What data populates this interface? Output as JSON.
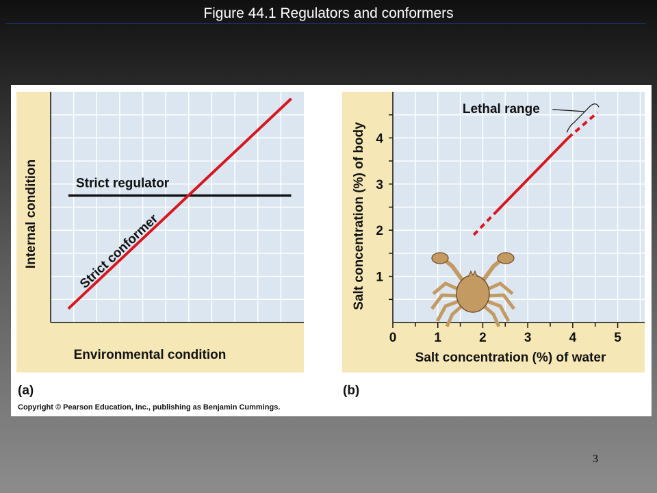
{
  "slide": {
    "title": "Figure 44.1  Regulators and conformers",
    "page_number": "3",
    "copyright": "Copyright © Pearson Education, Inc., publishing as Benjamin Cummings."
  },
  "colors": {
    "panel_bg": "#f6e8b6",
    "plot_bg": "#dbe6f1",
    "grid": "#ffffff",
    "conformer": "#d7161f",
    "regulator": "#111111",
    "crab": "#c49a63"
  },
  "chart_data": [
    {
      "type": "line",
      "panel_label": "(a)",
      "xlabel": "Environmental condition",
      "ylabel": "Internal condition",
      "ticks_shown": false,
      "grid": true,
      "series": [
        {
          "name": "Strict conformer",
          "color": "#d7161f",
          "style": "solid",
          "x": [
            0.07,
            0.95
          ],
          "y": [
            0.06,
            0.97
          ]
        },
        {
          "name": "Strict regulator",
          "color": "#111111",
          "style": "solid",
          "x": [
            0.07,
            0.95
          ],
          "y": [
            0.55,
            0.55
          ]
        }
      ],
      "xlim": [
        0,
        1
      ],
      "ylim": [
        0,
        1
      ]
    },
    {
      "type": "line",
      "panel_label": "(b)",
      "xlabel": "Salt concentration (%) of water",
      "ylabel": "Salt concentration (%) of body",
      "x_ticks": [
        "0",
        "1",
        "2",
        "3",
        "4",
        "5"
      ],
      "y_ticks": [
        "1",
        "2",
        "3",
        "4"
      ],
      "xlim": [
        0,
        5.6
      ],
      "ylim": [
        0,
        5
      ],
      "grid": true,
      "annotation": "Lethal range",
      "series": [
        {
          "style": "dashed",
          "color": "#d7161f",
          "x": [
            1.8,
            2.3
          ],
          "y": [
            1.9,
            2.4
          ]
        },
        {
          "style": "solid",
          "color": "#d7161f",
          "x": [
            2.3,
            3.9
          ],
          "y": [
            2.4,
            4.0
          ]
        },
        {
          "style": "dashed",
          "color": "#d7161f",
          "x": [
            3.9,
            4.55
          ],
          "y": [
            4.0,
            4.55
          ]
        }
      ]
    }
  ]
}
